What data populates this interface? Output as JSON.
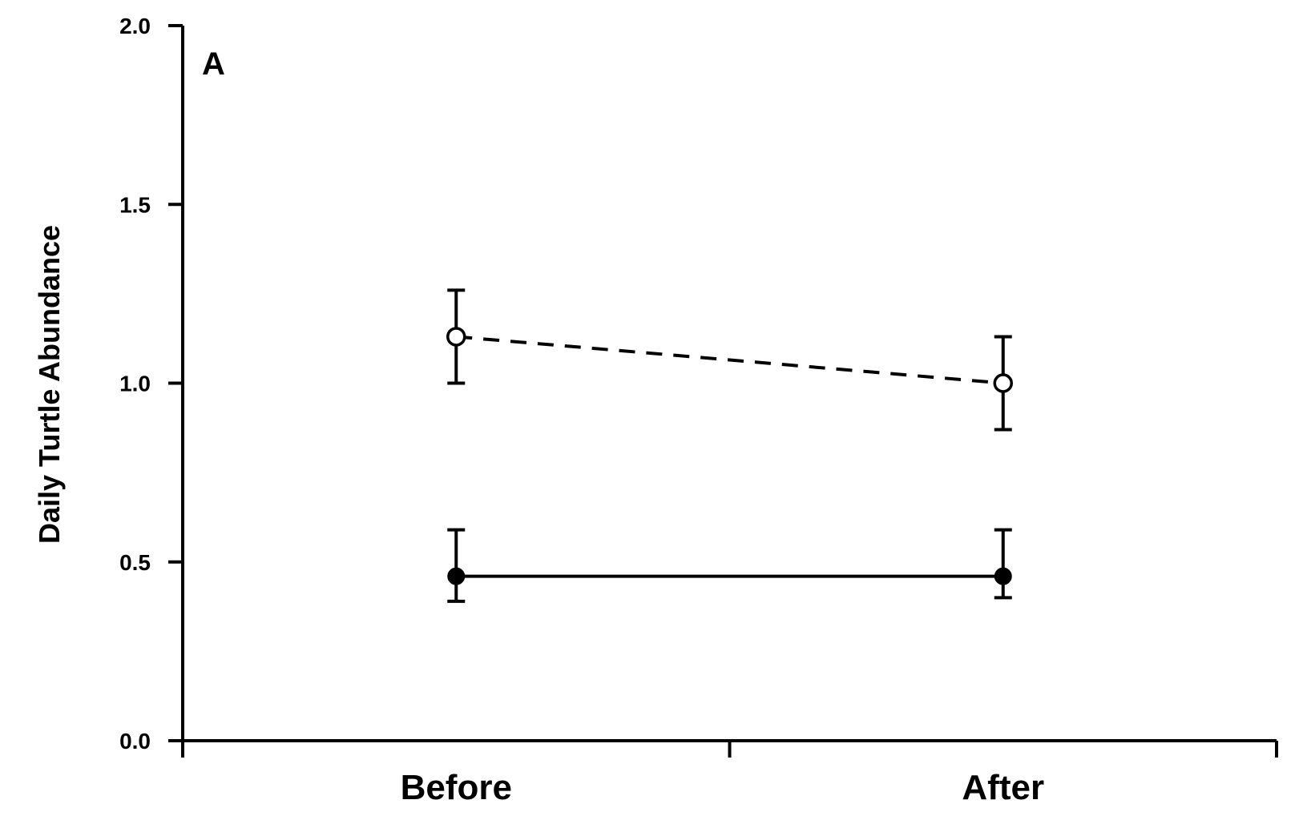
{
  "chart_data": {
    "type": "line",
    "panel_label": "A",
    "ylabel": "Daily Turtle Abundance",
    "xlabel": "",
    "ylim": [
      0.0,
      2.0
    ],
    "yticks": [
      "0.0",
      "0.5",
      "1.0",
      "1.5",
      "2.0"
    ],
    "categories": [
      "Before",
      "After"
    ],
    "grid": false,
    "series": [
      {
        "marker": "open-circle",
        "line_style": "dashed",
        "values": [
          1.13,
          1.0
        ],
        "error_low": [
          1.0,
          0.87
        ],
        "error_high": [
          1.26,
          1.13
        ]
      },
      {
        "marker": "filled-circle",
        "line_style": "solid",
        "values": [
          0.46,
          0.46
        ],
        "error_low": [
          0.39,
          0.4
        ],
        "error_high": [
          0.59,
          0.59
        ]
      }
    ],
    "colors": {
      "ink": "#000000",
      "background": "#ffffff"
    }
  }
}
